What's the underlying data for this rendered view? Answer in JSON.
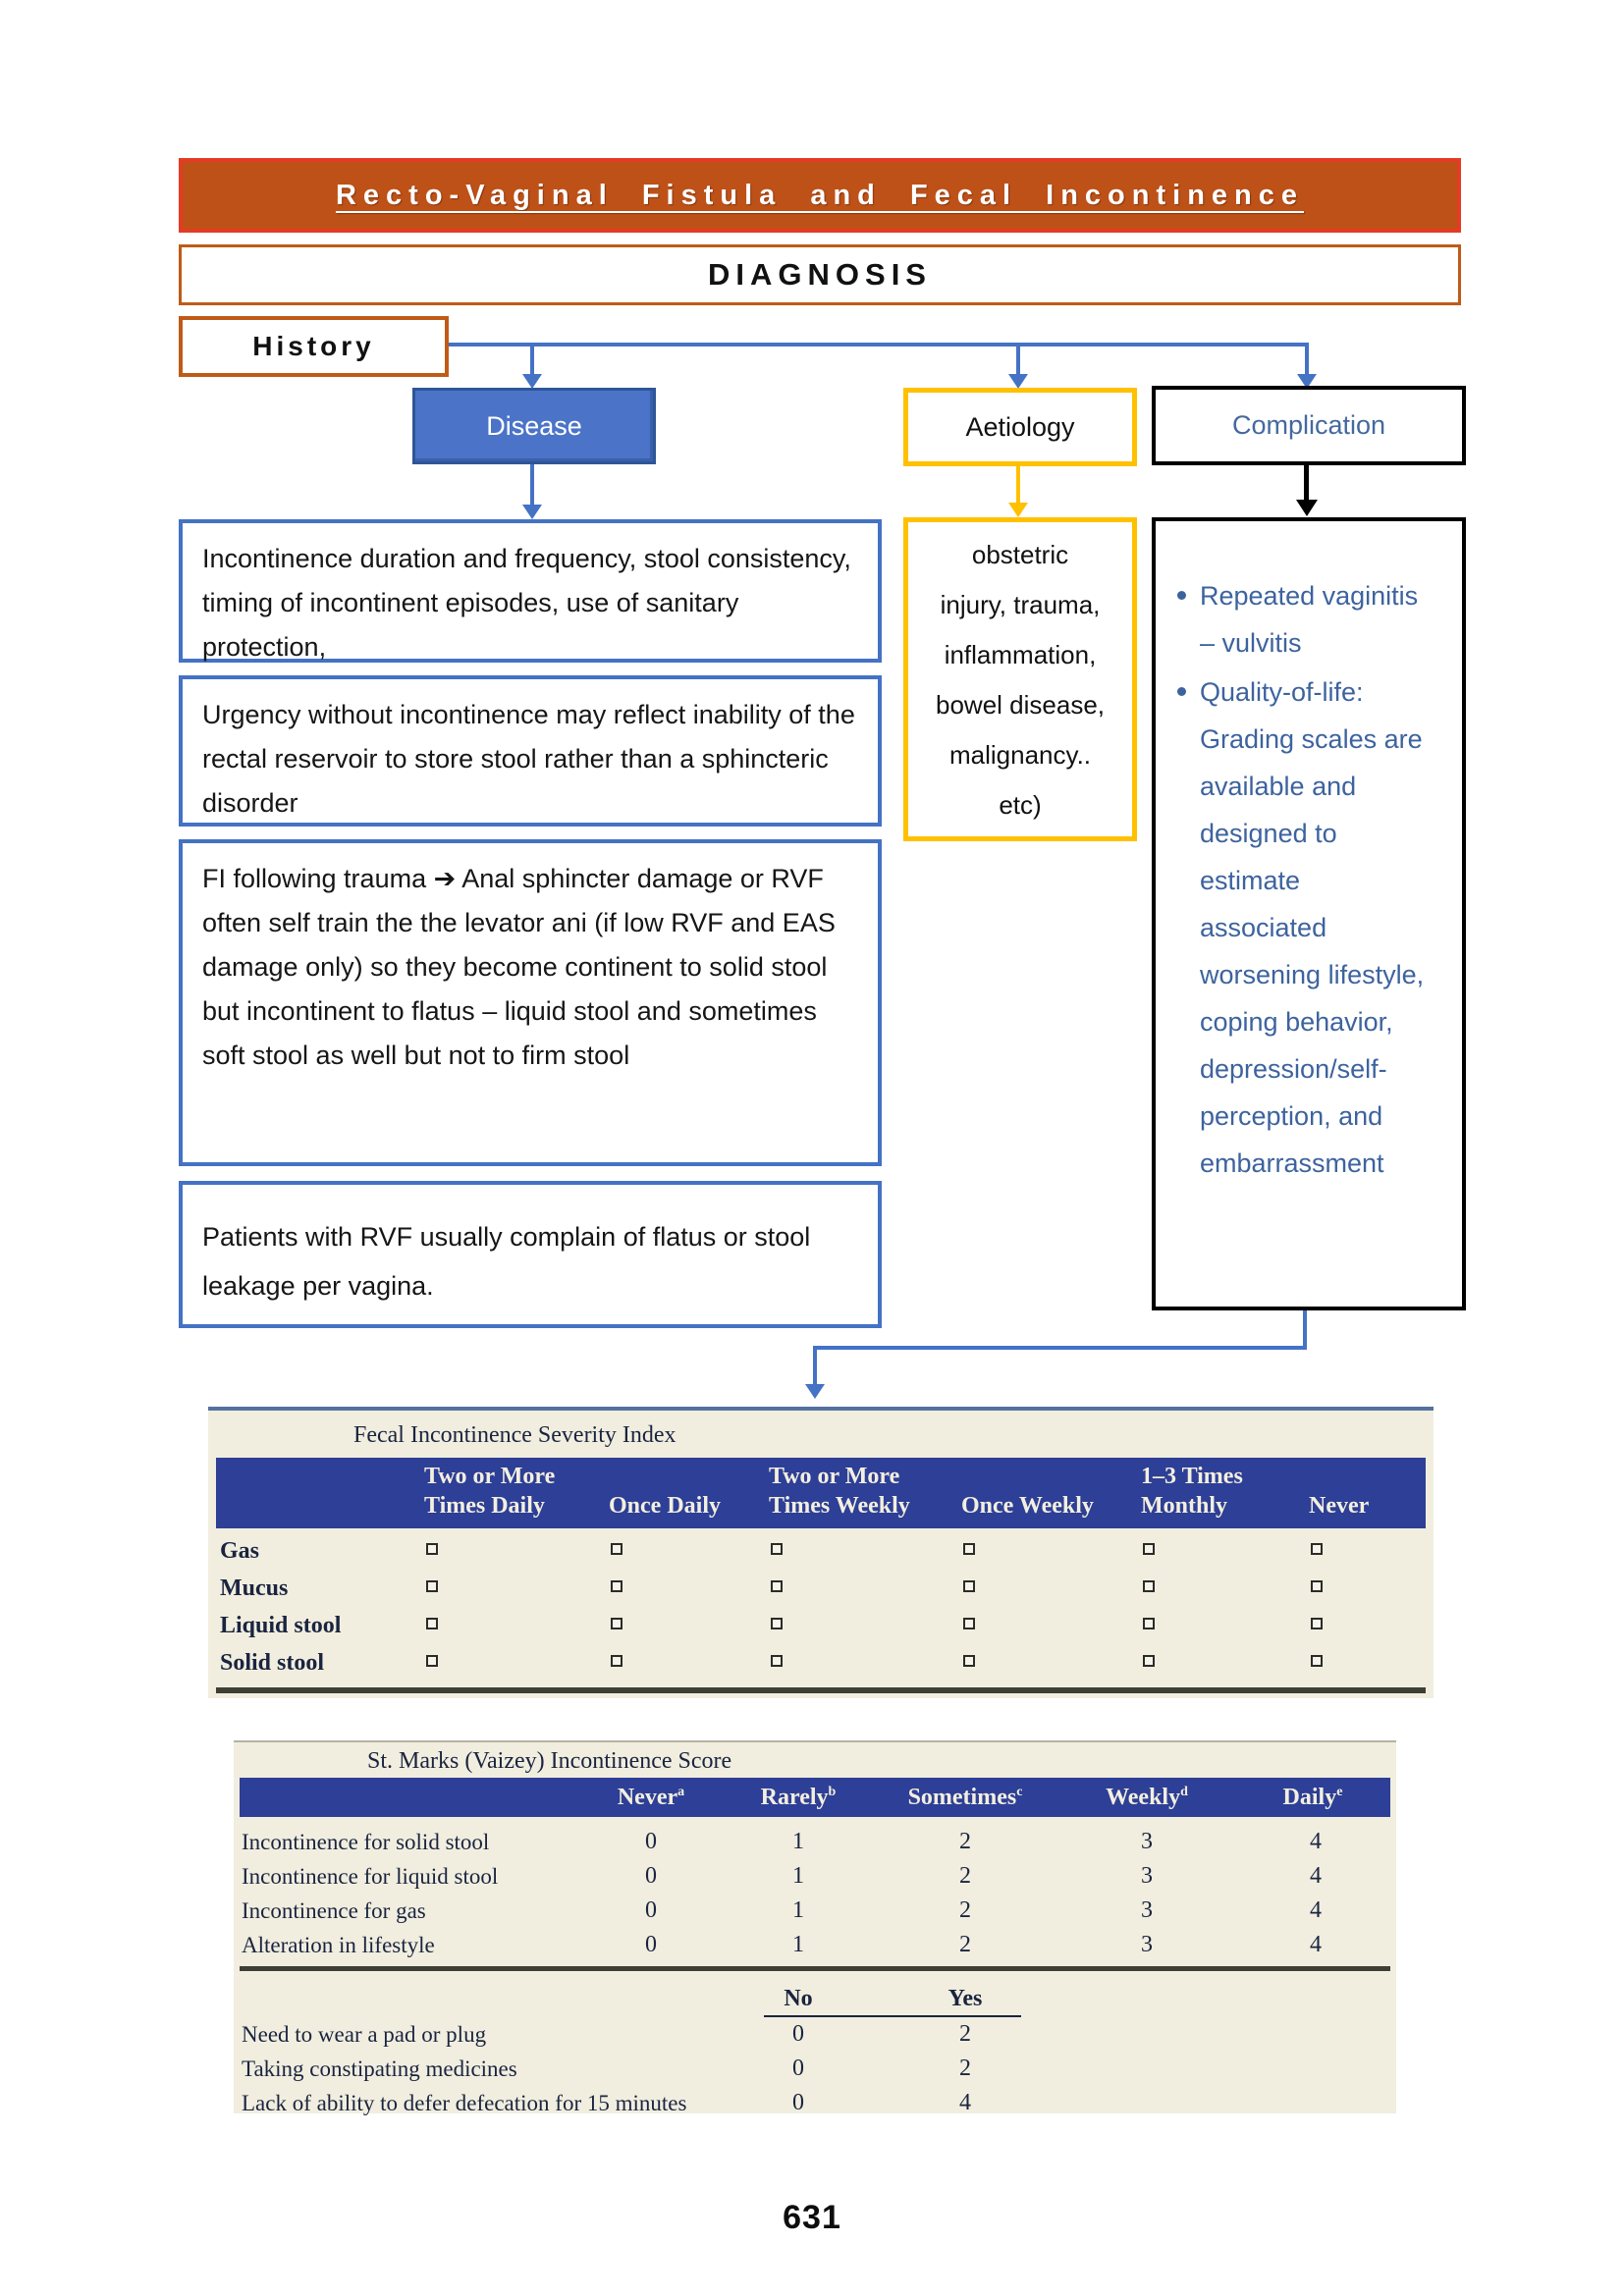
{
  "header": {
    "title": "Recto-Vaginal Fistula and Fecal Incontinence",
    "diagnosis": "DIAGNOSIS",
    "history": "History"
  },
  "flow_nodes": {
    "disease": "Disease",
    "aetiology": "Aetiology",
    "complication": "Complication"
  },
  "notes": {
    "n1": [
      "Incontinence duration and frequency, stool consistency, timing of incontinent episodes, use of sanitary protection,"
    ],
    "n2": [
      "Urgency without incontinence may reflect inability of the rectal reservoir to store stool rather than a sphincteric disorder"
    ],
    "n3": [
      "FI following trauma ➔ Anal sphincter damage or RVF",
      "often self train the the levator ani (if low RVF and EAS damage only) so they become continent to solid stool but incontinent to flatus – liquid stool and sometimes soft stool as well but not to firm stool"
    ],
    "n4": [
      "Patients with RVF usually complain of flatus or stool leakage per vagina."
    ]
  },
  "aetiology_detail": {
    "lines": [
      "obstetric",
      "injury, trauma,",
      "inflammation,",
      "bowel disease,",
      "malignancy..",
      "etc)"
    ]
  },
  "complication_detail": {
    "bullets": [
      "Repeated vaginitis – vulvitis",
      "Quality-of-life: Grading scales are available and designed to estimate associated worsening lifestyle, coping behavior, depression/self-perception, and embarrassment"
    ]
  },
  "fisi_table": {
    "title": "Fecal Incontinence Severity Index",
    "columns": [
      {
        "line1": "Two or More",
        "line2": "Times Daily"
      },
      {
        "line1": "",
        "line2": "Once Daily"
      },
      {
        "line1": "Two or More",
        "line2": "Times Weekly"
      },
      {
        "line1": "",
        "line2": "Once Weekly"
      },
      {
        "line1": "1–3 Times",
        "line2": "Monthly"
      },
      {
        "line1": "",
        "line2": "Never"
      }
    ],
    "rows": [
      "Gas",
      "Mucus",
      "Liquid stool",
      "Solid stool"
    ],
    "cell_marker": "open-square"
  },
  "vaizey_table": {
    "title": "St. Marks (Vaizey) Incontinence Score",
    "columns": [
      {
        "label": "Never",
        "sup": "a"
      },
      {
        "label": "Rarely",
        "sup": "b"
      },
      {
        "label": "Sometimes",
        "sup": "c"
      },
      {
        "label": "Weekly",
        "sup": "d"
      },
      {
        "label": "Daily",
        "sup": "e"
      }
    ],
    "rows": [
      {
        "label": "Incontinence for solid stool",
        "values": [
          "0",
          "1",
          "2",
          "3",
          "4"
        ]
      },
      {
        "label": "Incontinence for liquid stool",
        "values": [
          "0",
          "1",
          "2",
          "3",
          "4"
        ]
      },
      {
        "label": "Incontinence for gas",
        "values": [
          "0",
          "1",
          "2",
          "3",
          "4"
        ]
      },
      {
        "label": "Alteration in lifestyle",
        "values": [
          "0",
          "1",
          "2",
          "3",
          "4"
        ]
      }
    ],
    "yn_header": [
      "No",
      "Yes"
    ],
    "yn_rows": [
      {
        "label": "Need to wear a pad or plug",
        "values": [
          "0",
          "2"
        ]
      },
      {
        "label": "Taking constipating medicines",
        "values": [
          "0",
          "2"
        ]
      },
      {
        "label": "Lack of ability to defer defecation for 15 minutes",
        "values": [
          "0",
          "4"
        ]
      }
    ]
  },
  "colors": {
    "banner_fill": "#BE5117",
    "banner_border": "#E33B24",
    "heading_border": "#BF5B17",
    "flow_blue": "#4472C4",
    "flow_yellow": "#FFC000",
    "complication_text": "#3D639E",
    "table_header_blue": "#2D3F96",
    "table_beige": "#F1EEDF"
  },
  "page_number": "631"
}
